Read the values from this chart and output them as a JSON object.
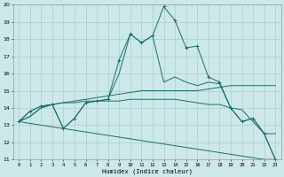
{
  "xlabel": "Humidex (Indice chaleur)",
  "bg_color": "#cce8e8",
  "grid_color": "#aacece",
  "line_color": "#1a6e6a",
  "xlim": [
    -0.5,
    23.5
  ],
  "ylim": [
    11,
    20
  ],
  "xticks": [
    0,
    1,
    2,
    3,
    4,
    5,
    6,
    7,
    8,
    9,
    10,
    11,
    12,
    13,
    14,
    15,
    16,
    17,
    18,
    19,
    20,
    21,
    22,
    23
  ],
  "yticks": [
    11,
    12,
    13,
    14,
    15,
    16,
    17,
    18,
    19,
    20
  ],
  "series": [
    {
      "x": [
        0,
        1,
        2,
        3,
        4,
        5,
        6,
        7,
        8,
        9,
        10,
        11,
        12,
        13,
        14,
        15,
        16,
        17,
        18,
        19,
        20,
        21,
        22,
        23
      ],
      "y": [
        13.2,
        13.8,
        14.1,
        14.2,
        12.8,
        13.4,
        14.3,
        14.4,
        14.5,
        16.8,
        18.3,
        17.8,
        18.2,
        19.9,
        19.1,
        17.5,
        17.6,
        15.8,
        15.5,
        14.0,
        13.2,
        13.4,
        12.5,
        11.0
      ],
      "marker": true
    },
    {
      "x": [
        0,
        1,
        2,
        3,
        4,
        5,
        6,
        7,
        8,
        9,
        10,
        11,
        12,
        13,
        14,
        15,
        16,
        17,
        18,
        19,
        20,
        21,
        22,
        23
      ],
      "y": [
        13.2,
        13.5,
        14.0,
        14.2,
        14.3,
        14.4,
        14.5,
        14.6,
        14.7,
        14.8,
        14.9,
        15.0,
        15.0,
        15.0,
        15.0,
        15.0,
        15.0,
        15.1,
        15.2,
        15.3,
        15.3,
        15.3,
        15.3,
        15.3
      ],
      "marker": false
    },
    {
      "x": [
        0,
        1,
        2,
        3,
        4,
        5,
        6,
        7,
        8,
        9,
        10,
        11,
        12,
        13,
        14,
        15,
        16,
        17,
        18,
        19,
        20,
        21,
        22,
        23
      ],
      "y": [
        13.2,
        13.5,
        14.0,
        14.2,
        14.3,
        14.3,
        14.4,
        14.4,
        14.4,
        14.4,
        14.5,
        14.5,
        14.5,
        14.5,
        14.5,
        14.4,
        14.3,
        14.2,
        14.2,
        14.0,
        13.9,
        13.2,
        12.5,
        12.5
      ],
      "marker": false
    },
    {
      "x": [
        0,
        1,
        2,
        3,
        4,
        5,
        6,
        7,
        8,
        9,
        10,
        11,
        12,
        13,
        14,
        15,
        16,
        17,
        18,
        19,
        20,
        21,
        22,
        23
      ],
      "y": [
        13.2,
        13.1,
        13.0,
        12.9,
        12.8,
        12.7,
        12.6,
        12.5,
        12.4,
        12.3,
        12.2,
        12.1,
        12.0,
        11.9,
        11.8,
        11.7,
        11.6,
        11.5,
        11.4,
        11.3,
        11.2,
        11.1,
        11.0,
        11.0
      ],
      "marker": false
    },
    {
      "x": [
        0,
        1,
        2,
        3,
        4,
        5,
        6,
        7,
        8,
        9,
        10,
        11,
        12,
        13,
        14,
        15,
        16,
        17,
        18,
        19,
        20,
        21,
        22,
        23
      ],
      "y": [
        13.2,
        13.8,
        14.1,
        14.2,
        12.8,
        13.4,
        14.3,
        14.4,
        14.5,
        16.0,
        18.3,
        17.8,
        18.2,
        15.5,
        15.8,
        15.5,
        15.3,
        15.5,
        15.4,
        14.0,
        13.2,
        13.4,
        12.5,
        11.0
      ],
      "marker": false
    }
  ]
}
